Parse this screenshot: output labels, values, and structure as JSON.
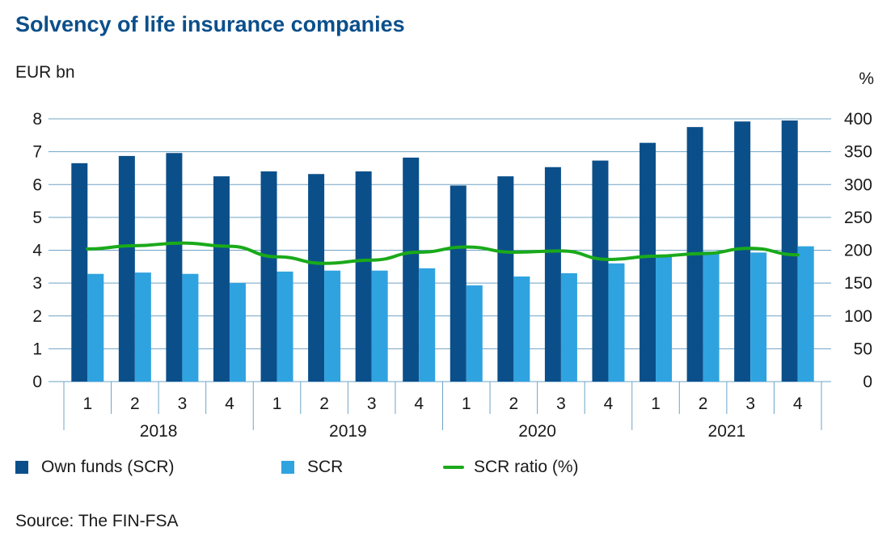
{
  "title": "Solvency of life insurance companies",
  "ylabel_left": "EUR bn",
  "ylabel_right": "%",
  "source": "Source: The FIN-FSA",
  "colors": {
    "own_funds": "#0b4f8a",
    "scr": "#2fa3e0",
    "ratio": "#1aaa1a",
    "title": "#0b4f8a",
    "axis": "#6fa3c7"
  },
  "legend": {
    "own_funds": "Own funds (SCR)",
    "scr": "SCR",
    "ratio": "SCR ratio (%)"
  },
  "chart_data": {
    "type": "bar",
    "categories": [
      "1",
      "2",
      "3",
      "4",
      "1",
      "2",
      "3",
      "4",
      "1",
      "2",
      "3",
      "4",
      "1",
      "2",
      "3",
      "4"
    ],
    "years": [
      "2018",
      "2019",
      "2020",
      "2021"
    ],
    "left_ticks": [
      "0",
      "1",
      "2",
      "3",
      "4",
      "5",
      "6",
      "7",
      "8"
    ],
    "right_ticks": [
      "0",
      "50",
      "100",
      "150",
      "200",
      "250",
      "300",
      "350",
      "400"
    ],
    "ylim_left": [
      0,
      8
    ],
    "ylim_right": [
      0,
      400
    ],
    "grid": true,
    "series": [
      {
        "name": "Own funds (SCR)",
        "kind": "bar",
        "axis": "left",
        "values": [
          6.65,
          6.87,
          6.96,
          6.25,
          6.4,
          6.32,
          6.4,
          6.82,
          5.97,
          6.25,
          6.53,
          6.73,
          7.27,
          7.75,
          7.92,
          7.95
        ]
      },
      {
        "name": "SCR",
        "kind": "bar",
        "axis": "left",
        "values": [
          3.28,
          3.32,
          3.28,
          3.0,
          3.35,
          3.38,
          3.38,
          3.45,
          2.93,
          3.2,
          3.3,
          3.6,
          3.82,
          3.96,
          3.93,
          4.12
        ]
      },
      {
        "name": "SCR ratio (%)",
        "kind": "line",
        "axis": "right",
        "values": [
          202,
          207,
          211,
          206,
          190,
          180,
          185,
          197,
          205,
          197,
          199,
          186,
          191,
          195,
          203,
          193
        ]
      }
    ]
  }
}
